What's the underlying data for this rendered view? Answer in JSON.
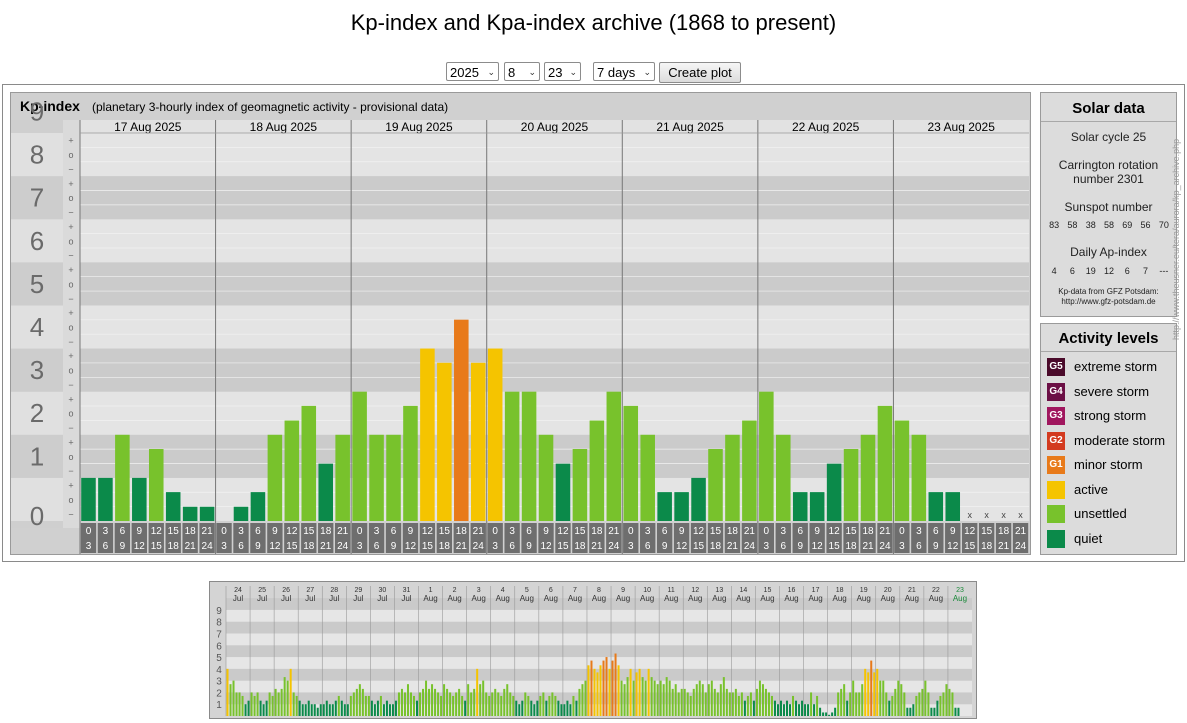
{
  "page": {
    "title": "Kp-index and Kpa-index archive (1868 to present)"
  },
  "controls": {
    "year": "2025",
    "month": "8",
    "day": "23",
    "range": "7 days",
    "create_label": "Create plot",
    "caret": "⌄"
  },
  "colors": {
    "quiet": "#0b8a4a",
    "unsettled": "#78c22c",
    "active": "#f5c400",
    "minor": "#e87a1a",
    "moderate": "#d33a1f",
    "strong": "#a0165e",
    "severe": "#6b0f45",
    "extreme": "#4a0a2a",
    "axis_gray": "#6e6e6e"
  },
  "chart_data": [
    {
      "type": "bar",
      "title": "Kp-index",
      "subtitle": "(planetary 3-hourly index of geomagnetic activity - provisional data)",
      "ylim": [
        0,
        9
      ],
      "y_ticks": [
        "0",
        "1",
        "2",
        "3",
        "4",
        "5",
        "6",
        "7",
        "8",
        "9"
      ],
      "sub_ticks": [
        "+",
        "o",
        "−"
      ],
      "days": [
        "17 Aug 2025",
        "18 Aug 2025",
        "19 Aug 2025",
        "20 Aug 2025",
        "21 Aug 2025",
        "22 Aug 2025",
        "23 Aug 2025"
      ],
      "interval_start": [
        "0",
        "3",
        "6",
        "9",
        "12",
        "15",
        "18",
        "21"
      ],
      "interval_end": [
        "3",
        "6",
        "9",
        "12",
        "15",
        "18",
        "21",
        "24"
      ],
      "missing_marker": "x",
      "values": [
        1.0,
        1.0,
        2.0,
        1.0,
        1.67,
        0.67,
        0.33,
        0.33,
        0.0,
        0.33,
        0.67,
        2.0,
        2.33,
        2.67,
        1.33,
        2.0,
        3.0,
        2.0,
        2.0,
        2.67,
        4.0,
        3.67,
        4.67,
        3.67,
        4.0,
        3.0,
        3.0,
        2.0,
        1.33,
        1.67,
        2.33,
        3.0,
        2.67,
        2.0,
        0.67,
        0.67,
        1.0,
        1.67,
        2.0,
        2.33,
        3.0,
        2.0,
        0.67,
        0.67,
        1.33,
        1.67,
        2.0,
        2.67,
        2.33,
        2.0,
        0.67,
        0.67,
        null,
        null,
        null,
        null
      ]
    },
    {
      "type": "bar",
      "title": "",
      "ylim": [
        0,
        9
      ],
      "y_ticks": [
        "1",
        "2",
        "3",
        "4",
        "5",
        "6",
        "7",
        "8",
        "9"
      ],
      "days": [
        {
          "d": "24",
          "m": "Jul"
        },
        {
          "d": "25",
          "m": "Jul"
        },
        {
          "d": "26",
          "m": "Jul"
        },
        {
          "d": "27",
          "m": "Jul"
        },
        {
          "d": "28",
          "m": "Jul"
        },
        {
          "d": "29",
          "m": "Jul"
        },
        {
          "d": "30",
          "m": "Jul"
        },
        {
          "d": "31",
          "m": "Jul"
        },
        {
          "d": "1",
          "m": "Aug"
        },
        {
          "d": "2",
          "m": "Aug"
        },
        {
          "d": "3",
          "m": "Aug"
        },
        {
          "d": "4",
          "m": "Aug"
        },
        {
          "d": "5",
          "m": "Aug"
        },
        {
          "d": "6",
          "m": "Aug"
        },
        {
          "d": "7",
          "m": "Aug"
        },
        {
          "d": "8",
          "m": "Aug"
        },
        {
          "d": "9",
          "m": "Aug"
        },
        {
          "d": "10",
          "m": "Aug"
        },
        {
          "d": "11",
          "m": "Aug"
        },
        {
          "d": "12",
          "m": "Aug"
        },
        {
          "d": "13",
          "m": "Aug"
        },
        {
          "d": "14",
          "m": "Aug"
        },
        {
          "d": "15",
          "m": "Aug"
        },
        {
          "d": "16",
          "m": "Aug"
        },
        {
          "d": "17",
          "m": "Aug"
        },
        {
          "d": "18",
          "m": "Aug"
        },
        {
          "d": "19",
          "m": "Aug"
        },
        {
          "d": "20",
          "m": "Aug"
        },
        {
          "d": "21",
          "m": "Aug"
        },
        {
          "d": "22",
          "m": "Aug"
        },
        {
          "d": "23",
          "m": "Aug"
        }
      ],
      "daily_values": [
        [
          4.0,
          2.7,
          3.0,
          2.0,
          2.0,
          1.7,
          1.0,
          1.3
        ],
        [
          2.0,
          1.7,
          2.0,
          1.3,
          1.0,
          1.3,
          2.0,
          1.7
        ],
        [
          2.3,
          2.0,
          2.3,
          3.3,
          3.0,
          4.0,
          2.0,
          1.7
        ],
        [
          1.3,
          1.0,
          1.0,
          1.3,
          1.0,
          1.0,
          0.7,
          1.0
        ],
        [
          1.0,
          1.3,
          1.0,
          1.0,
          1.3,
          1.7,
          1.3,
          1.0
        ],
        [
          1.0,
          1.7,
          2.0,
          2.3,
          2.7,
          2.3,
          1.7,
          1.7
        ],
        [
          1.3,
          1.0,
          1.3,
          1.7,
          1.0,
          1.3,
          1.0,
          1.0
        ],
        [
          1.3,
          2.0,
          2.3,
          2.0,
          2.7,
          2.0,
          1.7,
          1.3
        ],
        [
          2.0,
          2.3,
          3.0,
          2.3,
          2.7,
          2.3,
          2.0,
          1.7
        ],
        [
          2.7,
          2.3,
          2.0,
          1.7,
          2.0,
          2.3,
          1.7,
          1.3
        ],
        [
          2.7,
          2.0,
          2.3,
          4.0,
          2.7,
          3.0,
          2.0,
          1.7
        ],
        [
          2.0,
          2.3,
          2.0,
          1.7,
          2.3,
          2.7,
          2.0,
          1.7
        ],
        [
          1.3,
          1.0,
          1.3,
          2.0,
          1.7,
          1.3,
          1.0,
          1.3
        ],
        [
          1.7,
          2.0,
          1.3,
          1.7,
          2.0,
          1.7,
          1.3,
          1.0
        ],
        [
          1.0,
          1.3,
          1.0,
          1.7,
          1.3,
          2.3,
          2.7,
          3.0
        ],
        [
          4.3,
          4.7,
          4.0,
          3.7,
          4.3,
          4.7,
          5.0,
          4.0
        ],
        [
          4.7,
          5.3,
          4.3,
          3.0,
          2.7,
          3.3,
          4.0,
          3.0
        ],
        [
          3.7,
          4.0,
          3.3,
          3.0,
          4.0,
          3.3,
          3.0,
          2.7
        ],
        [
          3.0,
          2.7,
          3.3,
          3.0,
          2.3,
          2.7,
          2.0,
          2.3
        ],
        [
          2.3,
          2.0,
          1.7,
          2.3,
          2.7,
          3.0,
          2.7,
          2.0
        ],
        [
          2.7,
          3.0,
          2.3,
          2.0,
          2.7,
          3.3,
          2.3,
          2.0
        ],
        [
          2.0,
          2.3,
          1.7,
          2.0,
          1.3,
          1.7,
          2.0,
          1.3
        ],
        [
          2.3,
          3.0,
          2.7,
          2.3,
          2.0,
          1.7,
          1.3,
          1.0
        ],
        [
          1.3,
          1.0,
          1.3,
          1.0,
          1.7,
          1.3,
          1.0,
          1.3
        ],
        [
          1.0,
          1.0,
          2.0,
          1.0,
          1.7,
          0.7,
          0.3,
          0.3
        ],
        [
          0.0,
          0.3,
          0.7,
          2.0,
          2.3,
          2.7,
          1.3,
          2.0
        ],
        [
          3.0,
          2.0,
          2.0,
          2.7,
          4.0,
          3.7,
          4.7,
          3.7
        ],
        [
          4.0,
          3.0,
          3.0,
          2.0,
          1.3,
          1.7,
          2.3,
          3.0
        ],
        [
          2.7,
          2.0,
          0.7,
          0.7,
          1.0,
          1.7,
          2.0,
          2.3
        ],
        [
          3.0,
          2.0,
          0.7,
          0.7,
          1.3,
          1.7,
          2.0,
          2.7
        ],
        [
          2.3,
          2.0,
          0.7,
          0.7,
          null,
          null,
          null,
          null
        ]
      ]
    }
  ],
  "solar": {
    "title": "Solar data",
    "cycle": "Solar cycle 25",
    "carrington_line1": "Carrington rotation",
    "carrington_line2": "number 2301",
    "sunspot_title": "Sunspot number",
    "sunspot_values": [
      "83",
      "58",
      "38",
      "58",
      "69",
      "56",
      "70"
    ],
    "ap_title": "Daily Ap-index",
    "ap_values": [
      "4",
      "6",
      "19",
      "12",
      "6",
      "7",
      "---"
    ],
    "source_line1": "Kp-data from GFZ Potsdam:",
    "source_line2": "http://www.gfz-potsdam.de"
  },
  "activity": {
    "title": "Activity levels",
    "items": [
      {
        "code": "G5",
        "label": "extreme storm",
        "color": "#4a0a2a"
      },
      {
        "code": "G4",
        "label": "severe storm",
        "color": "#6b0f45"
      },
      {
        "code": "G3",
        "label": "strong storm",
        "color": "#a0165e"
      },
      {
        "code": "G2",
        "label": "moderate storm",
        "color": "#d33a1f"
      },
      {
        "code": "G1",
        "label": "minor storm",
        "color": "#e87a1a"
      },
      {
        "code": "",
        "label": "active",
        "color": "#f5c400"
      },
      {
        "code": "",
        "label": "unsettled",
        "color": "#78c22c"
      },
      {
        "code": "",
        "label": "quiet",
        "color": "#0b8a4a"
      }
    ]
  },
  "side_link": "http://www.theusner.eu/tera/aurora/kp_archive.php"
}
